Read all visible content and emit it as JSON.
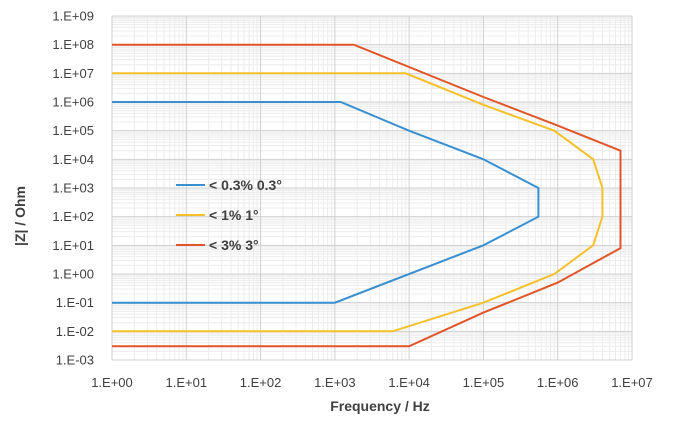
{
  "chart_data": {
    "type": "line",
    "xlabel": "Frequency / Hz",
    "ylabel": "|Z| / Ohm",
    "x_scale": "log",
    "y_scale": "log",
    "xlim": [
      1,
      10000000
    ],
    "ylim": [
      0.001,
      1000000000
    ],
    "x_ticks": [
      "1.E+00",
      "1.E+01",
      "1.E+02",
      "1.E+03",
      "1.E+04",
      "1.E+05",
      "1.E+06",
      "1.E+07"
    ],
    "y_ticks": [
      "1.E-03",
      "1.E-02",
      "1.E-01",
      "1.E+00",
      "1.E+01",
      "1.E+02",
      "1.E+03",
      "1.E+04",
      "1.E+05",
      "1.E+06",
      "1.E+07",
      "1.E+08",
      "1.E+09"
    ],
    "grid": true,
    "legend_position": "center-left",
    "series": [
      {
        "name": "< 0.3% 0.3°",
        "color": "#3a8fd0",
        "points": [
          [
            1,
            1000000
          ],
          [
            1200,
            1000000
          ],
          [
            10000,
            100000
          ],
          [
            100000,
            10000
          ],
          [
            550000,
            1000
          ],
          [
            550000,
            100
          ],
          [
            100000,
            10
          ],
          [
            1000,
            0.1
          ],
          [
            1,
            0.1
          ]
        ]
      },
      {
        "name": "< 1% 1°",
        "color": "#f5c02a",
        "points": [
          [
            1,
            10000000
          ],
          [
            9000,
            10000000
          ],
          [
            100000,
            800000
          ],
          [
            900000,
            100000
          ],
          [
            3000000,
            10000
          ],
          [
            4000000,
            1000
          ],
          [
            4000000,
            100
          ],
          [
            3000000,
            10
          ],
          [
            900000,
            1
          ],
          [
            100000,
            0.1
          ],
          [
            6000,
            0.01
          ],
          [
            1,
            0.01
          ]
        ]
      },
      {
        "name": "< 3% 3°",
        "color": "#e0552a",
        "points": [
          [
            1,
            100000000
          ],
          [
            1800,
            100000000
          ],
          [
            100000,
            1500000
          ],
          [
            1000000,
            150000
          ],
          [
            7000000,
            20000
          ],
          [
            7000000,
            8
          ],
          [
            1000000,
            0.5
          ],
          [
            100000,
            0.045
          ],
          [
            10000,
            0.003
          ],
          [
            1,
            0.003
          ]
        ]
      }
    ]
  }
}
